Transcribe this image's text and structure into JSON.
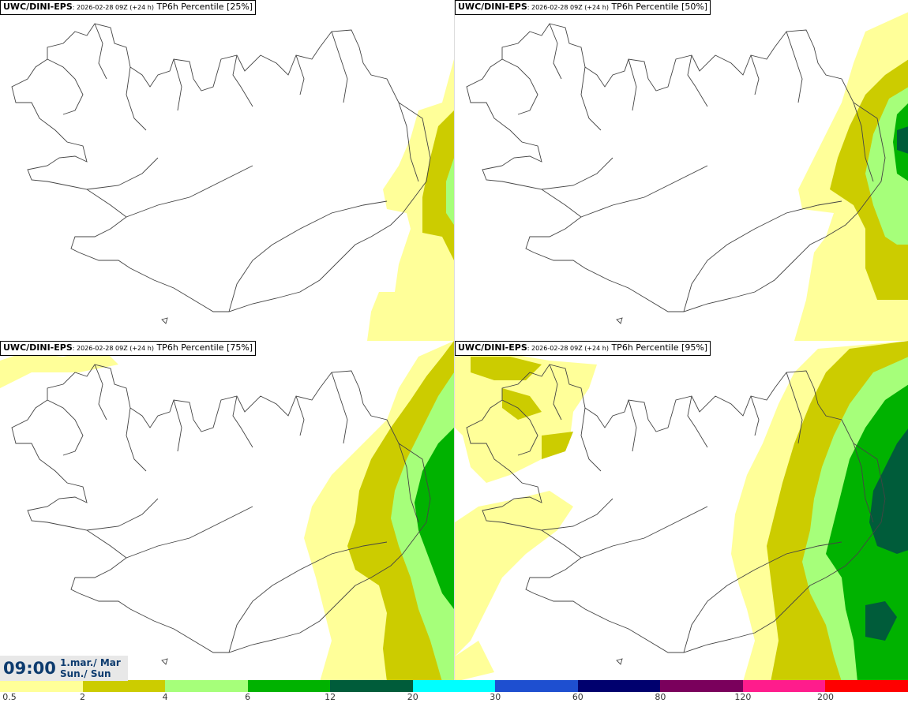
{
  "panels": [
    {
      "model": "UWC/DINI-EPS",
      "run": ": 2026-02-28 09Z (+24 h)",
      "field": " TP6h Percentile [25%]"
    },
    {
      "model": "UWC/DINI-EPS",
      "run": ": 2026-02-28 09Z (+24 h)",
      "field": " TP6h Percentile [50%]"
    },
    {
      "model": "UWC/DINI-EPS",
      "run": ": 2026-02-28 09Z (+24 h)",
      "field": " TP6h Percentile [75%]"
    },
    {
      "model": "UWC/DINI-EPS",
      "run": ": 2026-02-28 09Z (+24 h)",
      "field": " TP6h Percentile [95%]"
    }
  ],
  "clock": {
    "time": "09:00",
    "date_line1": "1.mar./ Mar",
    "date_line2": "Sun./ Sun"
  },
  "legend": {
    "ticks": [
      "0.5",
      "2",
      "4",
      "6",
      "12",
      "20",
      "30",
      "60",
      "80",
      "120",
      "200"
    ],
    "colors": [
      "#ffff99",
      "#cccc00",
      "#a6ff7a",
      "#00b200",
      "#005c3a",
      "#00ffff",
      "#1e4fd0",
      "#00006e",
      "#7a005c",
      "#ff1c8c",
      "#ff0000"
    ]
  },
  "palette": {
    "coast": "#444444",
    "light": "#ffff99",
    "olive": "#cccc00",
    "lightgreen": "#a6ff7a",
    "green": "#00b200",
    "darkgreen": "#005c3a"
  }
}
